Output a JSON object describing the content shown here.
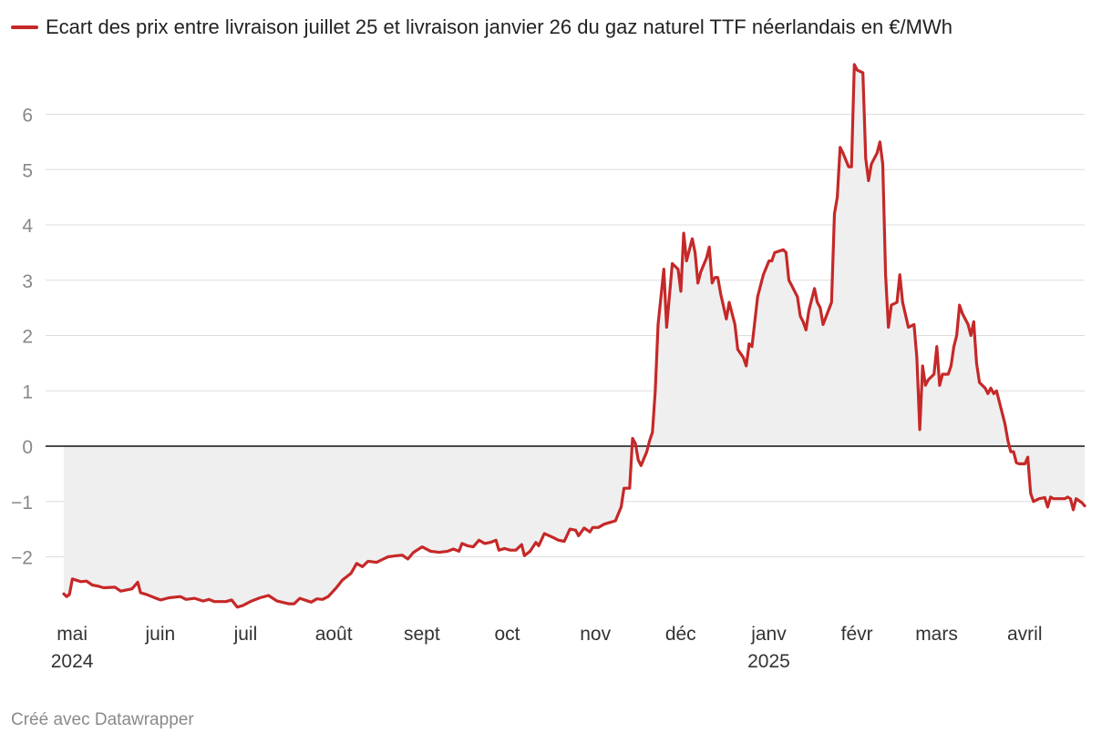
{
  "footer": {
    "credit": "Créé avec Datawrapper"
  },
  "chart_data": {
    "type": "area",
    "title": "",
    "xlabel": "",
    "ylabel": "",
    "ylim": [
      -3,
      6.9
    ],
    "grid": true,
    "legend_position": "top-left",
    "colors": {
      "line": "#c62828",
      "area": "#efefef",
      "grid": "#dddddd",
      "zero": "#111111",
      "tick": "#888888",
      "xtick": "#333333"
    },
    "y_ticks": [
      {
        "value": 6,
        "label": "6"
      },
      {
        "value": 5,
        "label": "5"
      },
      {
        "value": 4,
        "label": "4"
      },
      {
        "value": 3,
        "label": "3"
      },
      {
        "value": 2,
        "label": "2"
      },
      {
        "value": 1,
        "label": "1"
      },
      {
        "value": 0,
        "label": "0"
      },
      {
        "value": -1,
        "label": "−1"
      },
      {
        "value": -2,
        "label": "−2"
      }
    ],
    "x_ticks": [
      {
        "date": "2024-05-01",
        "label": "mai",
        "sublabel": "2024"
      },
      {
        "date": "2024-06-01",
        "label": "juin",
        "sublabel": ""
      },
      {
        "date": "2024-07-01",
        "label": "juil",
        "sublabel": ""
      },
      {
        "date": "2024-08-01",
        "label": "août",
        "sublabel": ""
      },
      {
        "date": "2024-09-01",
        "label": "sept",
        "sublabel": ""
      },
      {
        "date": "2024-10-01",
        "label": "oct",
        "sublabel": ""
      },
      {
        "date": "2024-11-01",
        "label": "nov",
        "sublabel": ""
      },
      {
        "date": "2024-12-01",
        "label": "déc",
        "sublabel": ""
      },
      {
        "date": "2025-01-01",
        "label": "janv",
        "sublabel": "2025"
      },
      {
        "date": "2025-02-01",
        "label": "févr",
        "sublabel": ""
      },
      {
        "date": "2025-03-01",
        "label": "mars",
        "sublabel": ""
      },
      {
        "date": "2025-04-01",
        "label": "avril",
        "sublabel": ""
      }
    ],
    "series": [
      {
        "name": "Ecart des prix entre livraison juillet 25 et livraison janvier 26 du gaz naturel TTF néerlandais en €/MWh",
        "data": [
          [
            "2024-04-30",
            -2.67
          ],
          [
            "2024-05-01",
            -2.72
          ],
          [
            "2024-05-02",
            -2.68
          ],
          [
            "2024-05-03",
            -2.4
          ],
          [
            "2024-05-06",
            -2.45
          ],
          [
            "2024-05-08",
            -2.44
          ],
          [
            "2024-05-10",
            -2.51
          ],
          [
            "2024-05-12",
            -2.53
          ],
          [
            "2024-05-14",
            -2.56
          ],
          [
            "2024-05-18",
            -2.55
          ],
          [
            "2024-05-20",
            -2.62
          ],
          [
            "2024-05-24",
            -2.58
          ],
          [
            "2024-05-26",
            -2.46
          ],
          [
            "2024-05-27",
            -2.65
          ],
          [
            "2024-05-29",
            -2.68
          ],
          [
            "2024-06-01",
            -2.74
          ],
          [
            "2024-06-03",
            -2.78
          ],
          [
            "2024-06-06",
            -2.74
          ],
          [
            "2024-06-10",
            -2.72
          ],
          [
            "2024-06-12",
            -2.77
          ],
          [
            "2024-06-15",
            -2.75
          ],
          [
            "2024-06-18",
            -2.8
          ],
          [
            "2024-06-20",
            -2.77
          ],
          [
            "2024-06-22",
            -2.81
          ],
          [
            "2024-06-26",
            -2.81
          ],
          [
            "2024-06-28",
            -2.78
          ],
          [
            "2024-06-30",
            -2.91
          ],
          [
            "2024-07-02",
            -2.88
          ],
          [
            "2024-07-05",
            -2.8
          ],
          [
            "2024-07-08",
            -2.74
          ],
          [
            "2024-07-11",
            -2.7
          ],
          [
            "2024-07-14",
            -2.8
          ],
          [
            "2024-07-18",
            -2.85
          ],
          [
            "2024-07-20",
            -2.85
          ],
          [
            "2024-07-22",
            -2.75
          ],
          [
            "2024-07-26",
            -2.82
          ],
          [
            "2024-07-28",
            -2.76
          ],
          [
            "2024-07-30",
            -2.77
          ],
          [
            "2024-08-01",
            -2.72
          ],
          [
            "2024-08-04",
            -2.55
          ],
          [
            "2024-08-06",
            -2.42
          ],
          [
            "2024-08-09",
            -2.3
          ],
          [
            "2024-08-11",
            -2.12
          ],
          [
            "2024-08-13",
            -2.18
          ],
          [
            "2024-08-15",
            -2.08
          ],
          [
            "2024-08-18",
            -2.1
          ],
          [
            "2024-08-20",
            -2.05
          ],
          [
            "2024-08-22",
            -2.0
          ],
          [
            "2024-08-25",
            -1.98
          ],
          [
            "2024-08-27",
            -1.97
          ],
          [
            "2024-08-29",
            -2.04
          ],
          [
            "2024-08-31",
            -1.92
          ],
          [
            "2024-09-03",
            -1.82
          ],
          [
            "2024-09-06",
            -1.9
          ],
          [
            "2024-09-09",
            -1.92
          ],
          [
            "2024-09-12",
            -1.9
          ],
          [
            "2024-09-14",
            -1.86
          ],
          [
            "2024-09-16",
            -1.9
          ],
          [
            "2024-09-17",
            -1.76
          ],
          [
            "2024-09-19",
            -1.8
          ],
          [
            "2024-09-21",
            -1.82
          ],
          [
            "2024-09-23",
            -1.7
          ],
          [
            "2024-09-25",
            -1.76
          ],
          [
            "2024-09-27",
            -1.74
          ],
          [
            "2024-09-29",
            -1.7
          ],
          [
            "2024-09-30",
            -1.88
          ],
          [
            "2024-10-02",
            -1.85
          ],
          [
            "2024-10-04",
            -1.88
          ],
          [
            "2024-10-06",
            -1.88
          ],
          [
            "2024-10-08",
            -1.78
          ],
          [
            "2024-10-09",
            -1.98
          ],
          [
            "2024-10-11",
            -1.9
          ],
          [
            "2024-10-13",
            -1.74
          ],
          [
            "2024-10-14",
            -1.8
          ],
          [
            "2024-10-16",
            -1.58
          ],
          [
            "2024-10-19",
            -1.65
          ],
          [
            "2024-10-21",
            -1.7
          ],
          [
            "2024-10-23",
            -1.72
          ],
          [
            "2024-10-25",
            -1.5
          ],
          [
            "2024-10-27",
            -1.52
          ],
          [
            "2024-10-28",
            -1.62
          ],
          [
            "2024-10-30",
            -1.48
          ],
          [
            "2024-11-01",
            -1.55
          ],
          [
            "2024-11-02",
            -1.47
          ],
          [
            "2024-11-04",
            -1.47
          ],
          [
            "2024-11-06",
            -1.41
          ],
          [
            "2024-11-08",
            -1.38
          ],
          [
            "2024-11-10",
            -1.35
          ],
          [
            "2024-11-12",
            -1.1
          ],
          [
            "2024-11-13",
            -0.76
          ],
          [
            "2024-11-15",
            -0.76
          ],
          [
            "2024-11-16",
            0.14
          ],
          [
            "2024-11-17",
            0.05
          ],
          [
            "2024-11-18",
            -0.25
          ],
          [
            "2024-11-19",
            -0.35
          ],
          [
            "2024-11-21",
            -0.1
          ],
          [
            "2024-11-22",
            0.1
          ],
          [
            "2024-11-23",
            0.25
          ],
          [
            "2024-11-24",
            1.0
          ],
          [
            "2024-11-25",
            2.2
          ],
          [
            "2024-11-27",
            3.2
          ],
          [
            "2024-11-28",
            2.15
          ],
          [
            "2024-11-30",
            3.3
          ],
          [
            "2024-12-02",
            3.2
          ],
          [
            "2024-12-03",
            2.8
          ],
          [
            "2024-12-04",
            3.85
          ],
          [
            "2024-12-05",
            3.35
          ],
          [
            "2024-12-07",
            3.75
          ],
          [
            "2024-12-08",
            3.5
          ],
          [
            "2024-12-09",
            2.95
          ],
          [
            "2024-12-10",
            3.15
          ],
          [
            "2024-12-12",
            3.4
          ],
          [
            "2024-12-13",
            3.6
          ],
          [
            "2024-12-14",
            2.95
          ],
          [
            "2024-12-15",
            3.05
          ],
          [
            "2024-12-16",
            3.05
          ],
          [
            "2024-12-17",
            2.75
          ],
          [
            "2024-12-19",
            2.3
          ],
          [
            "2024-12-20",
            2.6
          ],
          [
            "2024-12-22",
            2.2
          ],
          [
            "2024-12-23",
            1.75
          ],
          [
            "2024-12-25",
            1.6
          ],
          [
            "2024-12-26",
            1.45
          ],
          [
            "2024-12-27",
            1.85
          ],
          [
            "2024-12-28",
            1.8
          ],
          [
            "2024-12-30",
            2.7
          ],
          [
            "2025-01-01",
            3.1
          ],
          [
            "2025-01-03",
            3.35
          ],
          [
            "2025-01-04",
            3.35
          ],
          [
            "2025-01-05",
            3.5
          ],
          [
            "2025-01-08",
            3.55
          ],
          [
            "2025-01-09",
            3.5
          ],
          [
            "2025-01-10",
            3.0
          ],
          [
            "2025-01-11",
            2.9
          ],
          [
            "2025-01-13",
            2.7
          ],
          [
            "2025-01-14",
            2.35
          ],
          [
            "2025-01-15",
            2.25
          ],
          [
            "2025-01-16",
            2.1
          ],
          [
            "2025-01-17",
            2.45
          ],
          [
            "2025-01-19",
            2.85
          ],
          [
            "2025-01-20",
            2.6
          ],
          [
            "2025-01-21",
            2.5
          ],
          [
            "2025-01-22",
            2.2
          ],
          [
            "2025-01-25",
            2.6
          ],
          [
            "2025-01-26",
            4.2
          ],
          [
            "2025-01-27",
            4.5
          ],
          [
            "2025-01-28",
            5.4
          ],
          [
            "2025-01-29",
            5.3
          ],
          [
            "2025-01-31",
            5.05
          ],
          [
            "2025-02-01",
            5.05
          ],
          [
            "2025-02-02",
            6.9
          ],
          [
            "2025-02-03",
            6.8
          ],
          [
            "2025-02-05",
            6.75
          ],
          [
            "2025-02-06",
            5.2
          ],
          [
            "2025-02-07",
            4.8
          ],
          [
            "2025-02-08",
            5.1
          ],
          [
            "2025-02-10",
            5.3
          ],
          [
            "2025-02-11",
            5.5
          ],
          [
            "2025-02-12",
            5.1
          ],
          [
            "2025-02-13",
            3.1
          ],
          [
            "2025-02-14",
            2.15
          ],
          [
            "2025-02-15",
            2.55
          ],
          [
            "2025-02-17",
            2.6
          ],
          [
            "2025-02-18",
            3.1
          ],
          [
            "2025-02-19",
            2.6
          ],
          [
            "2025-02-21",
            2.15
          ],
          [
            "2025-02-23",
            2.2
          ],
          [
            "2025-02-24",
            1.6
          ],
          [
            "2025-02-25",
            0.3
          ],
          [
            "2025-02-26",
            1.45
          ],
          [
            "2025-02-27",
            1.1
          ],
          [
            "2025-02-28",
            1.2
          ],
          [
            "2025-03-02",
            1.3
          ],
          [
            "2025-03-03",
            1.8
          ],
          [
            "2025-03-04",
            1.1
          ],
          [
            "2025-03-05",
            1.3
          ],
          [
            "2025-03-07",
            1.3
          ],
          [
            "2025-03-08",
            1.45
          ],
          [
            "2025-03-09",
            1.8
          ],
          [
            "2025-03-10",
            2.0
          ],
          [
            "2025-03-11",
            2.55
          ],
          [
            "2025-03-12",
            2.4
          ],
          [
            "2025-03-14",
            2.2
          ],
          [
            "2025-03-15",
            2.0
          ],
          [
            "2025-03-16",
            2.25
          ],
          [
            "2025-03-17",
            1.5
          ],
          [
            "2025-03-18",
            1.15
          ],
          [
            "2025-03-20",
            1.05
          ],
          [
            "2025-03-21",
            0.95
          ],
          [
            "2025-03-22",
            1.05
          ],
          [
            "2025-03-23",
            0.95
          ],
          [
            "2025-03-24",
            1.0
          ],
          [
            "2025-03-25",
            0.8
          ],
          [
            "2025-03-27",
            0.4
          ],
          [
            "2025-03-28",
            0.1
          ],
          [
            "2025-03-29",
            -0.1
          ],
          [
            "2025-03-30",
            -0.1
          ],
          [
            "2025-03-31",
            -0.3
          ],
          [
            "2025-04-01",
            -0.32
          ],
          [
            "2025-04-03",
            -0.32
          ],
          [
            "2025-04-04",
            -0.2
          ],
          [
            "2025-04-05",
            -0.85
          ],
          [
            "2025-04-06",
            -1.0
          ],
          [
            "2025-04-08",
            -0.95
          ],
          [
            "2025-04-10",
            -0.93
          ],
          [
            "2025-04-11",
            -1.1
          ],
          [
            "2025-04-12",
            -0.92
          ],
          [
            "2025-04-13",
            -0.95
          ],
          [
            "2025-04-15",
            -0.95
          ],
          [
            "2025-04-17",
            -0.95
          ],
          [
            "2025-04-18",
            -0.92
          ],
          [
            "2025-04-19",
            -0.95
          ],
          [
            "2025-04-20",
            -1.15
          ],
          [
            "2025-04-21",
            -0.95
          ],
          [
            "2025-04-23",
            -1.02
          ],
          [
            "2025-04-24",
            -1.08
          ]
        ]
      }
    ]
  }
}
